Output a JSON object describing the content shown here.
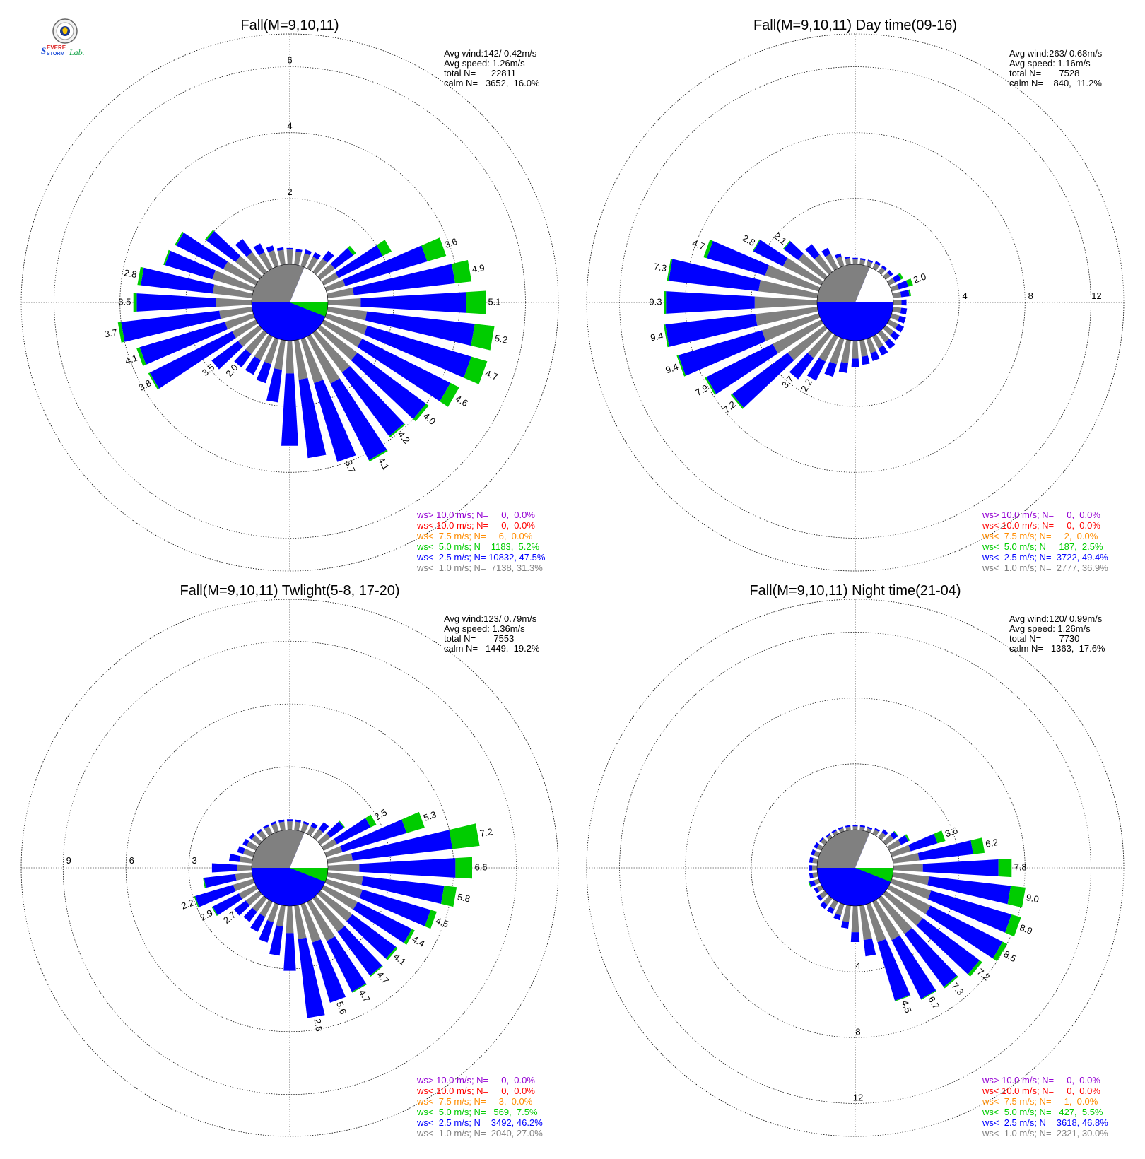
{
  "logo": {
    "text": "SEVERE STORM Lab."
  },
  "directions": [
    0,
    10,
    20,
    30,
    40,
    50,
    60,
    70,
    80,
    90,
    100,
    110,
    120,
    130,
    140,
    150,
    160,
    170,
    180,
    190,
    200,
    210,
    220,
    230,
    240,
    250,
    260,
    270,
    280,
    290,
    300,
    310,
    320,
    330,
    340,
    350
  ],
  "colors": {
    "gt10": "#9400d3",
    "lt10": "#ff0000",
    "lt7_5": "#ff8c00",
    "lt5": "#00cc00",
    "lt2_5": "#0000ff",
    "lt1": "#808080",
    "calm_major": "#808080",
    "calm_minor": "#ffffff"
  },
  "chart_data": [
    {
      "type": "windrose",
      "title": "Fall(M=9,10,11)",
      "rmax": 7,
      "ticks": [
        2,
        4,
        6
      ],
      "tick_labels": [
        "2",
        "4",
        "6"
      ],
      "tick_axis": "north",
      "stats": [
        "Avg wind:142/ 0.42m/s",
        "Avg speed: 1.26m/s",
        "total N=      22811",
        "calm N=   3652,  16.0%"
      ],
      "calm_pct": 16.0,
      "legend": [
        {
          "color": "#9400d3",
          "text": "ws> 10.0 m/s; N=     0,  0.0%"
        },
        {
          "color": "#ff0000",
          "text": "ws< 10.0 m/s; N=     0,  0.0%"
        },
        {
          "color": "#ff8c00",
          "text": "ws<  7.5 m/s; N=     6,  0.0%"
        },
        {
          "color": "#00cc00",
          "text": "ws<  5.0 m/s; N=  1183,  5.2%"
        },
        {
          "color": "#0000ff",
          "text": "ws<  2.5 m/s; N= 10832, 47.5%"
        },
        {
          "color": "#808080",
          "text": "ws<  1.0 m/s; N=  7138, 31.3%"
        }
      ],
      "series": [
        {
          "name": "ws< 1.0 m/s",
          "values": [
            0.45,
            0.4,
            0.4,
            0.4,
            0.5,
            0.55,
            0.5,
            0.6,
            0.8,
            1.0,
            1.2,
            1.3,
            1.3,
            1.4,
            1.5,
            1.6,
            1.4,
            1.2,
            1.0,
            0.9,
            0.8,
            0.8,
            0.8,
            0.8,
            0.8,
            0.9,
            1.0,
            1.1,
            1.2,
            1.3,
            1.1,
            0.9,
            0.75,
            0.55,
            0.5,
            0.45
          ]
        },
        {
          "name": "ws< 2.5 m/s",
          "values": [
            0.05,
            0.08,
            0.12,
            0.15,
            0.3,
            0.7,
            1.5,
            2.6,
            3.1,
            3.2,
            3.3,
            3.3,
            3.0,
            2.6,
            2.4,
            2.6,
            2.5,
            2.4,
            2.2,
            1.0,
            0.6,
            0.5,
            0.5,
            1.0,
            2.8,
            2.7,
            3.0,
            2.4,
            2.2,
            1.5,
            1.6,
            1.1,
            0.5,
            0.3,
            0.15,
            0.08
          ]
        },
        {
          "name": "ws< 5.0 m/s",
          "values": [
            0,
            0,
            0,
            0,
            0,
            0.1,
            0.3,
            0.6,
            0.5,
            0.6,
            0.6,
            0.5,
            0.3,
            0.1,
            0.05,
            0.05,
            0,
            0,
            0,
            0,
            0,
            0,
            0,
            0,
            0.05,
            0.1,
            0.1,
            0.1,
            0.1,
            0.05,
            0.05,
            0.05,
            0,
            0,
            0,
            0
          ]
        }
      ],
      "labels": [
        null,
        null,
        null,
        null,
        null,
        null,
        null,
        "3.6",
        "4.9",
        "5.1",
        "5.2",
        "4.7",
        "4.6",
        "4.0",
        "4.2",
        "4.1",
        "3.7",
        null,
        null,
        null,
        null,
        null,
        "2.0",
        "3.5",
        "3.8",
        "4.1",
        "3.7",
        "3.5",
        "2.8",
        null,
        null,
        null,
        null,
        null,
        null,
        null
      ]
    },
    {
      "type": "windrose",
      "title": "Fall(M=9,10,11) Day time(09-16)",
      "rmax": 14,
      "ticks": [
        4,
        8,
        12
      ],
      "tick_labels": [
        "4",
        "8",
        "12"
      ],
      "tick_axis": "east",
      "stats": [
        "Avg wind:263/ 0.68m/s",
        "Avg speed: 1.16m/s",
        "total N=       7528",
        "calm N=    840,  11.2%"
      ],
      "calm_pct": 11.2,
      "legend": [
        {
          "color": "#9400d3",
          "text": "ws> 10.0 m/s; N=     0,  0.0%"
        },
        {
          "color": "#ff0000",
          "text": "ws< 10.0 m/s; N=     0,  0.0%"
        },
        {
          "color": "#ff8c00",
          "text": "ws<  7.5 m/s; N=     2,  0.0%"
        },
        {
          "color": "#00cc00",
          "text": "ws<  5.0 m/s; N=   187,  2.5%"
        },
        {
          "color": "#0000ff",
          "text": "ws<  2.5 m/s; N=  3722, 49.4%"
        },
        {
          "color": "#808080",
          "text": "ws<  1.0 m/s; N=  2777, 36.9%"
        }
      ],
      "series": [
        {
          "name": "ws< 1.0 m/s",
          "values": [
            0.3,
            0.3,
            0.3,
            0.35,
            0.35,
            0.35,
            0.4,
            0.45,
            0.5,
            0.5,
            0.5,
            0.5,
            0.6,
            0.6,
            0.7,
            0.8,
            0.9,
            1.0,
            1.1,
            1.4,
            1.6,
            1.7,
            1.9,
            2.8,
            3.3,
            3.6,
            3.8,
            3.8,
            3.6,
            3.4,
            2.6,
            2.0,
            1.3,
            1.0,
            0.6,
            0.4
          ]
        },
        {
          "name": "ws< 2.5 m/s",
          "values": [
            0.1,
            0.1,
            0.1,
            0.15,
            0.15,
            0.2,
            0.4,
            0.6,
            0.5,
            0.3,
            0.35,
            0.4,
            0.4,
            0.45,
            0.5,
            0.5,
            0.5,
            0.5,
            0.5,
            0.6,
            0.8,
            1.3,
            1.6,
            4.2,
            4.5,
            5.3,
            5.5,
            5.4,
            5.5,
            3.7,
            2.0,
            1.1,
            0.8,
            0.4,
            0.2,
            0.1
          ]
        },
        {
          "name": "ws< 5.0 m/s",
          "values": [
            0,
            0,
            0,
            0,
            0,
            0,
            0.15,
            0.3,
            0.1,
            0,
            0,
            0,
            0,
            0,
            0,
            0,
            0,
            0,
            0,
            0,
            0,
            0,
            0,
            0.1,
            0.1,
            0.1,
            0.1,
            0.1,
            0.1,
            0.2,
            0.05,
            0.05,
            0,
            0,
            0,
            0
          ]
        }
      ],
      "labels": [
        null,
        null,
        null,
        null,
        null,
        null,
        null,
        "2.0",
        null,
        null,
        null,
        null,
        null,
        null,
        null,
        null,
        null,
        null,
        null,
        null,
        null,
        "2.2",
        "3.7",
        "7.2",
        "7.9",
        "9.4",
        "9.4",
        "9.3",
        "7.3",
        "4.7",
        "2.8",
        "2.1",
        null,
        null,
        null,
        null
      ]
    },
    {
      "type": "windrose",
      "title": "Fall(M=9,10,11) Twlight(5-8, 17-20)",
      "rmax": 11,
      "ticks": [
        3,
        6,
        9
      ],
      "tick_labels": [
        "3",
        "6",
        "9"
      ],
      "tick_axis": "west",
      "stats": [
        "Avg wind:123/ 0.79m/s",
        "Avg speed: 1.36m/s",
        "total N=       7553",
        "calm N=   1449,  19.2%"
      ],
      "calm_pct": 19.2,
      "legend": [
        {
          "color": "#9400d3",
          "text": "ws> 10.0 m/s; N=     0,  0.0%"
        },
        {
          "color": "#ff0000",
          "text": "ws< 10.0 m/s; N=     0,  0.0%"
        },
        {
          "color": "#ff8c00",
          "text": "ws<  7.5 m/s; N=     3,  0.0%"
        },
        {
          "color": "#00cc00",
          "text": "ws<  5.0 m/s; N=   569,  7.5%"
        },
        {
          "color": "#0000ff",
          "text": "ws<  2.5 m/s; N=  3492, 46.2%"
        },
        {
          "color": "#808080",
          "text": "ws<  1.0 m/s; N=  2040, 27.0%"
        }
      ],
      "series": [
        {
          "name": "ws< 1.0 m/s",
          "values": [
            0.4,
            0.4,
            0.4,
            0.4,
            0.5,
            0.6,
            0.7,
            0.8,
            1.2,
            1.5,
            1.7,
            1.8,
            1.8,
            1.9,
            2.0,
            2.1,
            1.9,
            1.6,
            1.3,
            1.0,
            0.9,
            0.8,
            0.8,
            0.8,
            0.9,
            1.0,
            0.8,
            0.7,
            0.6,
            0.5,
            0.5,
            0.45,
            0.4,
            0.4,
            0.4,
            0.4
          ]
        },
        {
          "name": "ws< 2.5 m/s",
          "values": [
            0.1,
            0.1,
            0.1,
            0.2,
            0.4,
            0.8,
            1.8,
            3.2,
            4.8,
            4.6,
            3.9,
            3.4,
            2.9,
            2.6,
            2.6,
            2.7,
            3.0,
            3.8,
            1.8,
            1.4,
            1.0,
            0.8,
            0.6,
            0.7,
            1.4,
            1.9,
            1.5,
            1.2,
            0.5,
            0.3,
            0.2,
            0.15,
            0.1,
            0.1,
            0.1,
            0.1
          ]
        },
        {
          "name": "ws< 5.0 m/s",
          "values": [
            0,
            0,
            0,
            0,
            0,
            0.05,
            0.3,
            0.9,
            1.3,
            0.8,
            0.6,
            0.3,
            0.15,
            0.1,
            0.05,
            0.05,
            0,
            0,
            0,
            0,
            0,
            0,
            0,
            0,
            0.05,
            0.05,
            0.05,
            0,
            0,
            0,
            0,
            0,
            0,
            0,
            0,
            0
          ]
        }
      ],
      "labels": [
        null,
        null,
        null,
        null,
        null,
        null,
        "2.5",
        "5.3",
        "7.2",
        "6.6",
        "5.8",
        "4.5",
        "4.4",
        "4.1",
        "4.7",
        "4.7",
        "5.6",
        "2.8",
        null,
        null,
        null,
        null,
        null,
        "2.7",
        "2.9",
        "2.2",
        null,
        null,
        null,
        null,
        null,
        null,
        null,
        null,
        null,
        null
      ]
    },
    {
      "type": "windrose",
      "title": "Fall(M=9,10,11) Night time(21-04)",
      "rmax": 14,
      "ticks": [
        4,
        8,
        12
      ],
      "tick_labels": [
        "4",
        "8",
        "12"
      ],
      "tick_axis": "south",
      "stats": [
        "Avg wind:120/ 0.99m/s",
        "Avg speed: 1.26m/s",
        "total N=       7730",
        "calm N=   1363,  17.6%"
      ],
      "calm_pct": 17.6,
      "legend": [
        {
          "color": "#9400d3",
          "text": "ws> 10.0 m/s; N=     0,  0.0%"
        },
        {
          "color": "#ff0000",
          "text": "ws< 10.0 m/s; N=     0,  0.0%"
        },
        {
          "color": "#ff8c00",
          "text": "ws<  7.5 m/s; N=     1,  0.0%"
        },
        {
          "color": "#00cc00",
          "text": "ws<  5.0 m/s; N=   427,  5.5%"
        },
        {
          "color": "#0000ff",
          "text": "ws<  2.5 m/s; N=  3618, 46.8%"
        },
        {
          "color": "#808080",
          "text": "ws<  1.0 m/s; N=  2321, 30.0%"
        }
      ],
      "series": [
        {
          "name": "ws< 1.0 m/s",
          "values": [
            0.2,
            0.2,
            0.2,
            0.3,
            0.4,
            0.6,
            0.8,
            1.2,
            1.6,
            1.8,
            2.2,
            2.5,
            2.8,
            2.8,
            2.7,
            2.6,
            2.4,
            2.1,
            1.6,
            1.0,
            0.7,
            0.5,
            0.5,
            0.4,
            0.3,
            0.3,
            0.3,
            0.3,
            0.3,
            0.3,
            0.3,
            0.3,
            0.2,
            0.2,
            0.2,
            0.2
          ]
        },
        {
          "name": "ws< 2.5 m/s",
          "values": [
            0.1,
            0.1,
            0.1,
            0.1,
            0.2,
            0.3,
            0.5,
            1.7,
            3.3,
            4.6,
            5.0,
            5.1,
            4.9,
            4.3,
            4.0,
            4.0,
            3.7,
            1.0,
            0.6,
            0.4,
            0.3,
            0.3,
            0.3,
            0.2,
            0.2,
            0.3,
            0.2,
            0.2,
            0.2,
            0.2,
            0.2,
            0.1,
            0.1,
            0.1,
            0.1,
            0.1
          ]
        },
        {
          "name": "ws< 5.0 m/s",
          "values": [
            0,
            0,
            0,
            0,
            0,
            0.05,
            0.1,
            0.5,
            0.7,
            0.8,
            0.9,
            0.6,
            0.3,
            0.2,
            0.1,
            0.05,
            0.05,
            0,
            0,
            0,
            0,
            0,
            0,
            0,
            0,
            0.05,
            0,
            0,
            0,
            0,
            0,
            0,
            0,
            0,
            0,
            0
          ]
        }
      ],
      "labels": [
        null,
        null,
        null,
        null,
        null,
        null,
        null,
        "3.6",
        "6.2",
        "7.8",
        "9.0",
        "8.9",
        "8.5",
        "7.2",
        "7.3",
        "6.7",
        "4.5",
        null,
        null,
        null,
        null,
        null,
        null,
        null,
        null,
        null,
        null,
        null,
        null,
        null,
        null,
        null,
        null,
        null,
        null,
        null
      ]
    }
  ]
}
